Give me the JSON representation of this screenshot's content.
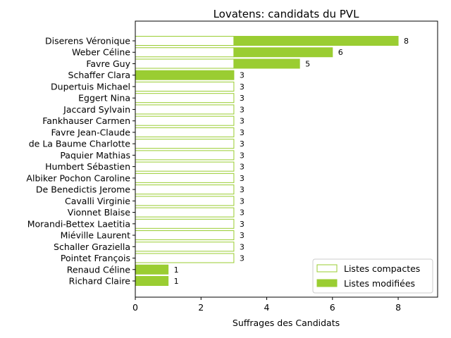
{
  "chart_data": {
    "type": "bar",
    "orientation": "horizontal",
    "stacked": true,
    "title": "Lovatens: candidats du PVL",
    "xlabel": "Suffrages des Candidats",
    "ylabel": "",
    "xlim": [
      0,
      9.2
    ],
    "xticks": [
      "0",
      "2",
      "4",
      "6",
      "8"
    ],
    "legend_position": "lower-right",
    "colors": {
      "accent": "#9acd32",
      "outline": "#9acd32",
      "hollow_fill": "#ffffff"
    },
    "categories": [
      "Diserens Véronique",
      "Weber Céline",
      "Favre Guy",
      "Schaffer Clara",
      "Dupertuis Michael",
      "Eggert Nina",
      "Jaccard Sylvain",
      "Fankhauser Carmen",
      "Favre Jean-Claude",
      "de La Baume Charlotte",
      "Paquier Mathias",
      "Humbert Sébastien",
      "Albiker Pochon Caroline",
      "De Benedictis Jerome",
      "Cavalli Virginie",
      "Vionnet Blaise",
      "Morandi-Bettex Laetitia",
      "Miéville Laurent",
      "Schaller Graziella",
      "Pointet François",
      "Renaud Céline",
      "Richard Claire"
    ],
    "series": [
      {
        "name": "Listes compactes",
        "values": [
          3,
          3,
          3,
          0,
          3,
          3,
          3,
          3,
          3,
          3,
          3,
          3,
          3,
          3,
          3,
          3,
          3,
          3,
          3,
          3,
          0,
          0
        ]
      },
      {
        "name": "Listes modifiées",
        "values": [
          5,
          3,
          2,
          3,
          0,
          0,
          0,
          0,
          0,
          0,
          0,
          0,
          0,
          0,
          0,
          0,
          0,
          0,
          0,
          0,
          1,
          1
        ]
      }
    ],
    "totals": [
      "8",
      "6",
      "5",
      "3",
      "3",
      "3",
      "3",
      "3",
      "3",
      "3",
      "3",
      "3",
      "3",
      "3",
      "3",
      "3",
      "3",
      "3",
      "3",
      "3",
      "1",
      "1"
    ]
  }
}
